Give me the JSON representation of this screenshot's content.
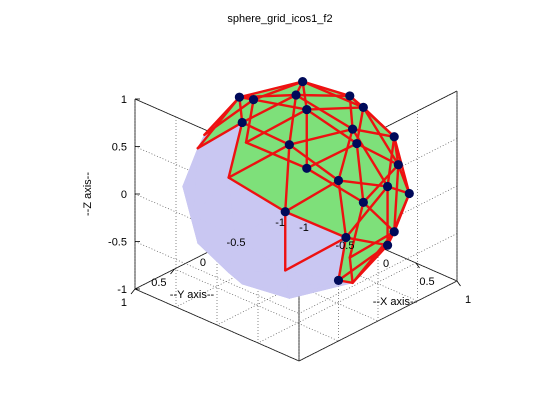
{
  "chart_data": {
    "type": "3d-mesh",
    "title": "sphere_grid_icos1_f2",
    "xlabel": "--X axis--",
    "ylabel": "--Y axis--",
    "zlabel": "--Z axis--",
    "xlim": [
      -1,
      1
    ],
    "ylim": [
      -1,
      1
    ],
    "zlim": [
      -1,
      1
    ],
    "x_ticks": [
      -1,
      -0.5,
      0,
      0.5,
      1
    ],
    "y_ticks": [
      -1,
      -0.5,
      0,
      0.5,
      1
    ],
    "z_ticks": [
      -1,
      -0.5,
      0,
      0.5,
      1
    ],
    "x_tick_labels": [
      "-1",
      "-0.5",
      "0",
      "0.5",
      "1"
    ],
    "y_tick_labels": [
      "-1",
      "-0.5",
      "0",
      "0.5",
      "1"
    ],
    "z_tick_labels": [
      "-1",
      "-0.5",
      "0",
      "0.5",
      "1"
    ],
    "grid": true,
    "mesh": "icosahedron subdivided with frequency 2 (42 nodes)",
    "node_count": 42,
    "colors": {
      "face_front": "#7ee07a",
      "face_back": "#c9c7f2",
      "edge": "#ee1111",
      "node": "#000a5a",
      "grid": "#555555",
      "axis": "#000000"
    }
  }
}
